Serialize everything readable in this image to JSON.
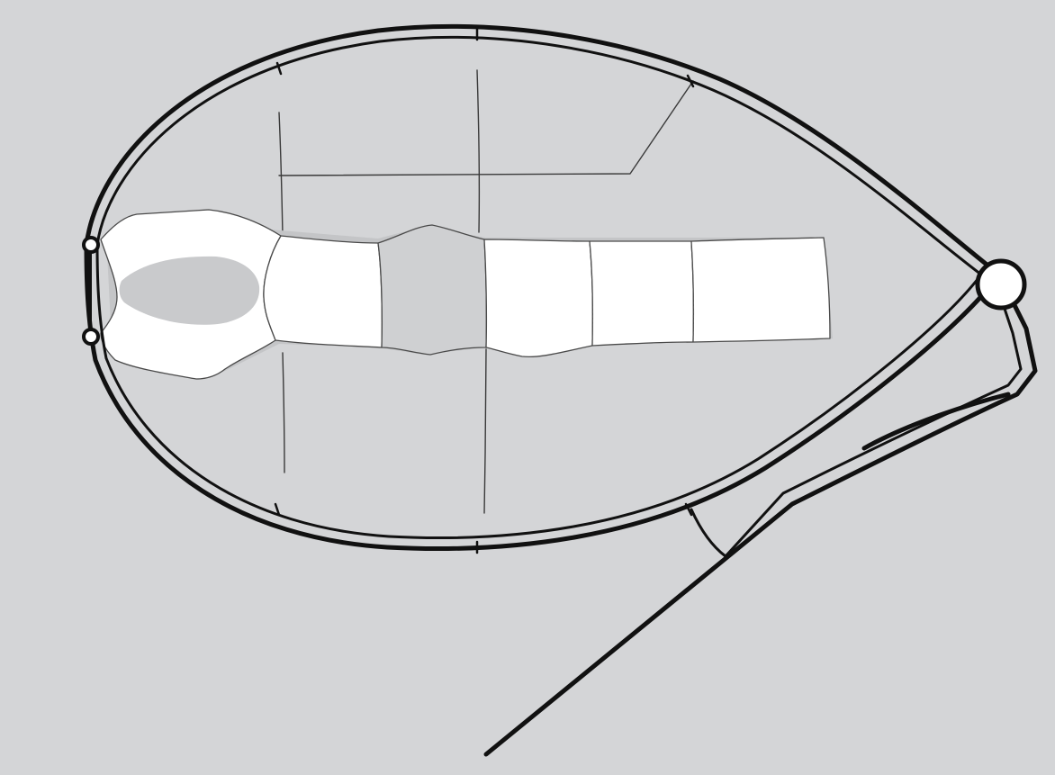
{
  "figure": {
    "kind": "line-drawing",
    "subject": "",
    "background_color": "#d4d5d7",
    "frame_color": "#111111",
    "segment_fill_color": "#ffffff",
    "segment_shade_color": "#c4c5c7",
    "labels": []
  }
}
